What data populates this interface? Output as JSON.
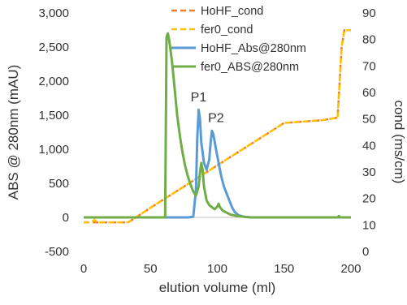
{
  "chart_data": {
    "type": "line",
    "x_axis": {
      "label": "elution volume (ml)",
      "range": [
        0,
        200
      ],
      "ticks": [
        0,
        50,
        100,
        150,
        200
      ]
    },
    "y_axis_left": {
      "label": "ABS @ 280nm (mAU)",
      "range": [
        -500,
        3000
      ],
      "ticks": [
        -500,
        0,
        500,
        1000,
        1500,
        2000,
        2500,
        3000
      ],
      "tick_labels": [
        "-500",
        "0",
        "500",
        "1,000",
        "1,500",
        "2,000",
        "2,500",
        "3,000"
      ]
    },
    "y_axis_right": {
      "label": "cond (ms/cm)",
      "range": [
        0,
        90
      ],
      "ticks": [
        0,
        10,
        20,
        30,
        40,
        50,
        60,
        70,
        80,
        90
      ],
      "tick_labels": [
        "0",
        "10",
        "20",
        "30",
        "40",
        "50",
        "60",
        "70",
        "80",
        "90"
      ]
    },
    "grid": false,
    "legend_position": "top-right",
    "series": [
      {
        "name": "HoHF_cond",
        "axis": "right",
        "style": "dashed",
        "color": "#ED7D31",
        "points": [
          [
            0,
            11
          ],
          [
            33,
            11
          ],
          [
            35,
            11.5
          ],
          [
            50,
            16.5
          ],
          [
            75,
            24.5
          ],
          [
            100,
            32.5
          ],
          [
            125,
            40.5
          ],
          [
            150,
            48.5
          ],
          [
            178,
            49.5
          ],
          [
            190,
            50.5
          ],
          [
            193,
            77
          ],
          [
            195,
            83.5
          ],
          [
            200,
            83.5
          ]
        ]
      },
      {
        "name": "fer0_cond",
        "axis": "right",
        "style": "dashed",
        "color": "#FFC000",
        "points": [
          [
            0,
            11
          ],
          [
            6,
            11
          ],
          [
            8,
            12
          ],
          [
            10,
            11
          ],
          [
            33,
            11
          ],
          [
            35,
            11.5
          ],
          [
            50,
            16.5
          ],
          [
            75,
            24.5
          ],
          [
            100,
            32.5
          ],
          [
            125,
            40.5
          ],
          [
            150,
            48.5
          ],
          [
            178,
            49.5
          ],
          [
            190,
            50.5
          ],
          [
            193,
            77
          ],
          [
            195,
            83.5
          ],
          [
            200,
            83.5
          ]
        ]
      },
      {
        "name": "HoHF_Abs@280nm",
        "axis": "left",
        "style": "solid",
        "color": "#5B9BD5",
        "points": [
          [
            0,
            0
          ],
          [
            78,
            0
          ],
          [
            82,
            10
          ],
          [
            84,
            400
          ],
          [
            85,
            1150
          ],
          [
            86,
            1580
          ],
          [
            87,
            1450
          ],
          [
            88,
            1100
          ],
          [
            90,
            800
          ],
          [
            92,
            700
          ],
          [
            94,
            850
          ],
          [
            95,
            1100
          ],
          [
            96,
            1270
          ],
          [
            97,
            1220
          ],
          [
            99,
            1000
          ],
          [
            101,
            800
          ],
          [
            103,
            600
          ],
          [
            105,
            450
          ],
          [
            107,
            350
          ],
          [
            109,
            250
          ],
          [
            111,
            150
          ],
          [
            113,
            80
          ],
          [
            116,
            30
          ],
          [
            120,
            10
          ],
          [
            125,
            0
          ],
          [
            200,
            0
          ]
        ]
      },
      {
        "name": "fer0_ABS@280nm",
        "axis": "left",
        "style": "solid",
        "color": "#70AD47",
        "points": [
          [
            0,
            0
          ],
          [
            60,
            0
          ],
          [
            61,
            0
          ],
          [
            62,
            2650
          ],
          [
            63,
            2700
          ],
          [
            64,
            2600
          ],
          [
            66,
            2300
          ],
          [
            68,
            1900
          ],
          [
            70,
            1500
          ],
          [
            72,
            1200
          ],
          [
            74,
            950
          ],
          [
            76,
            750
          ],
          [
            78,
            600
          ],
          [
            80,
            480
          ],
          [
            82,
            380
          ],
          [
            84,
            320
          ],
          [
            86,
            450
          ],
          [
            87,
            650
          ],
          [
            88,
            800
          ],
          [
            89,
            700
          ],
          [
            90,
            450
          ],
          [
            92,
            250
          ],
          [
            94,
            180
          ],
          [
            96,
            150
          ],
          [
            98,
            120
          ],
          [
            100,
            160
          ],
          [
            101,
            200
          ],
          [
            102,
            150
          ],
          [
            104,
            100
          ],
          [
            106,
            80
          ],
          [
            108,
            60
          ],
          [
            110,
            40
          ],
          [
            115,
            20
          ],
          [
            120,
            10
          ],
          [
            125,
            0
          ],
          [
            190,
            0
          ],
          [
            191,
            20
          ],
          [
            192,
            0
          ],
          [
            200,
            0
          ]
        ]
      }
    ],
    "annotations": [
      {
        "text": "P1",
        "x": 86,
        "y": 1700,
        "axis": "left"
      },
      {
        "text": "P2",
        "x": 99,
        "y": 1400,
        "axis": "left"
      }
    ]
  }
}
